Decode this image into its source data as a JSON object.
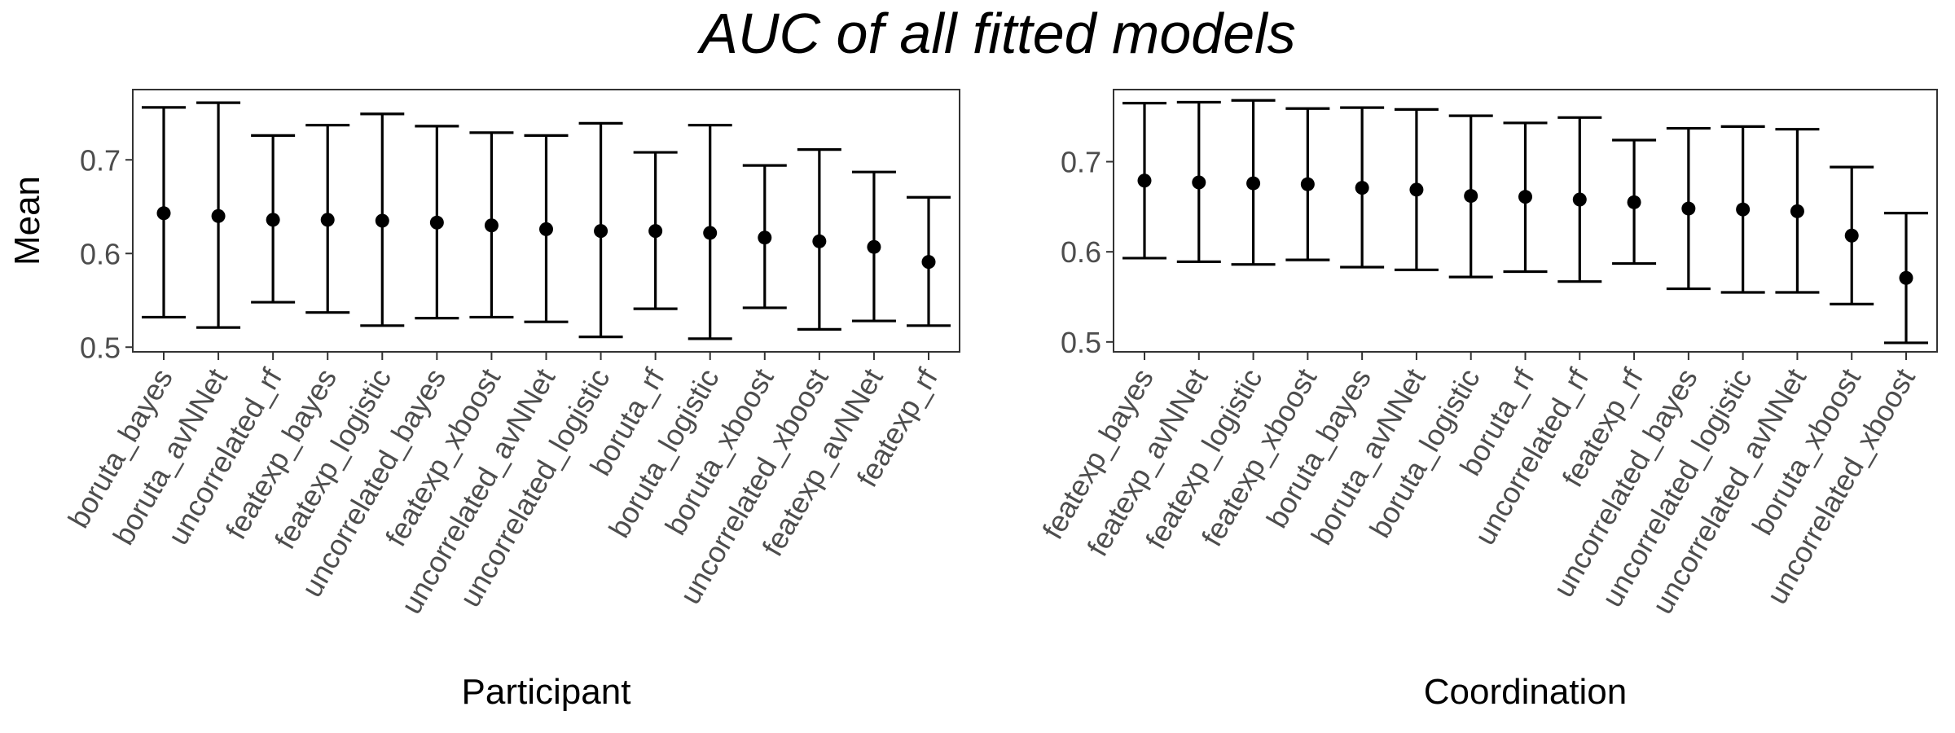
{
  "title": "AUC of all fitted models",
  "chart_data": [
    {
      "type": "errorbar",
      "xlabel": "Participant",
      "ylabel": "Mean",
      "ylim": [
        0.495,
        0.775
      ],
      "yticks": [
        0.5,
        0.6,
        0.7
      ],
      "ytick_labels": [
        "0.5",
        "0.6",
        "0.7"
      ],
      "grid": false,
      "categories": [
        "boruta_bayes",
        "boruta_avNNet",
        "uncorrelated_rf",
        "featexp_bayes",
        "featexp_logistic",
        "uncorrelated_bayes",
        "featexp_xboost",
        "uncorrelated_avNNet",
        "uncorrelated_logistic",
        "boruta_rf",
        "boruta_logistic",
        "boruta_xboost",
        "uncorrelated_xboost",
        "featexp_avNNet",
        "featexp_rf"
      ],
      "mean": [
        0.643,
        0.64,
        0.636,
        0.636,
        0.635,
        0.633,
        0.63,
        0.626,
        0.624,
        0.624,
        0.622,
        0.617,
        0.613,
        0.607,
        0.591
      ],
      "lower": [
        0.532,
        0.521,
        0.548,
        0.537,
        0.523,
        0.531,
        0.532,
        0.527,
        0.511,
        0.541,
        0.509,
        0.542,
        0.519,
        0.528,
        0.523
      ],
      "upper": [
        0.756,
        0.761,
        0.726,
        0.737,
        0.749,
        0.736,
        0.729,
        0.726,
        0.739,
        0.708,
        0.737,
        0.694,
        0.711,
        0.687,
        0.66
      ]
    },
    {
      "type": "errorbar",
      "xlabel": "Coordination",
      "ylabel": "",
      "ylim": [
        0.489,
        0.78
      ],
      "yticks": [
        0.5,
        0.6,
        0.7
      ],
      "ytick_labels": [
        "0.5",
        "0.6",
        "0.7"
      ],
      "grid": false,
      "categories": [
        "featexp_bayes",
        "featexp_avNNet",
        "featexp_logistic",
        "featexp_xboost",
        "boruta_bayes",
        "boruta_avNNet",
        "boruta_logistic",
        "boruta_rf",
        "uncorrelated_rf",
        "featexp_rf",
        "uncorrelated_bayes",
        "uncorrelated_logistic",
        "uncorrelated_avNNet",
        "boruta_xboost",
        "uncorrelated_xboost"
      ],
      "mean": [
        0.679,
        0.677,
        0.676,
        0.675,
        0.671,
        0.669,
        0.662,
        0.661,
        0.658,
        0.655,
        0.648,
        0.647,
        0.645,
        0.618,
        0.571
      ],
      "lower": [
        0.593,
        0.589,
        0.586,
        0.591,
        0.583,
        0.58,
        0.572,
        0.578,
        0.567,
        0.587,
        0.559,
        0.555,
        0.555,
        0.542,
        0.499
      ],
      "upper": [
        0.765,
        0.766,
        0.768,
        0.759,
        0.76,
        0.758,
        0.751,
        0.743,
        0.749,
        0.724,
        0.737,
        0.739,
        0.736,
        0.694,
        0.643
      ]
    }
  ]
}
